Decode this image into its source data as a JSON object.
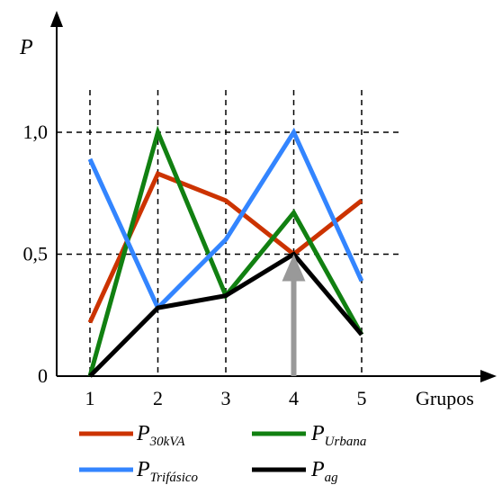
{
  "chart_data": {
    "type": "line",
    "ylabel": "P",
    "xlabel": "Grupos",
    "categories": [
      "1",
      "2",
      "3",
      "4",
      "5"
    ],
    "x": [
      1,
      2,
      3,
      4,
      5
    ],
    "y_ticks": [
      "0",
      "0,5",
      "1,0"
    ],
    "y_tick_values": [
      0,
      0.5,
      1.0
    ],
    "ylim": [
      0,
      1.0
    ],
    "grid": "dashed",
    "legend_position": "bottom",
    "series": [
      {
        "name": "P",
        "sub": "30kVA",
        "color": "#cc3300",
        "values": [
          0.22,
          0.83,
          0.72,
          0.5,
          0.72
        ]
      },
      {
        "name": "P",
        "sub": "Urbana",
        "color": "#118011",
        "values": [
          0.0,
          1.0,
          0.33,
          0.67,
          0.17
        ]
      },
      {
        "name": "P",
        "sub": "Trifásico",
        "color": "#3385ff",
        "values": [
          0.89,
          0.28,
          0.56,
          1.0,
          0.39
        ]
      },
      {
        "name": "P",
        "sub": "ag",
        "color": "#000000",
        "values": [
          0.0,
          0.28,
          0.33,
          0.5,
          0.17
        ]
      }
    ],
    "annotation": {
      "type": "arrow",
      "x": 4,
      "from": 0,
      "to": 0.5,
      "color": "#999999"
    }
  }
}
